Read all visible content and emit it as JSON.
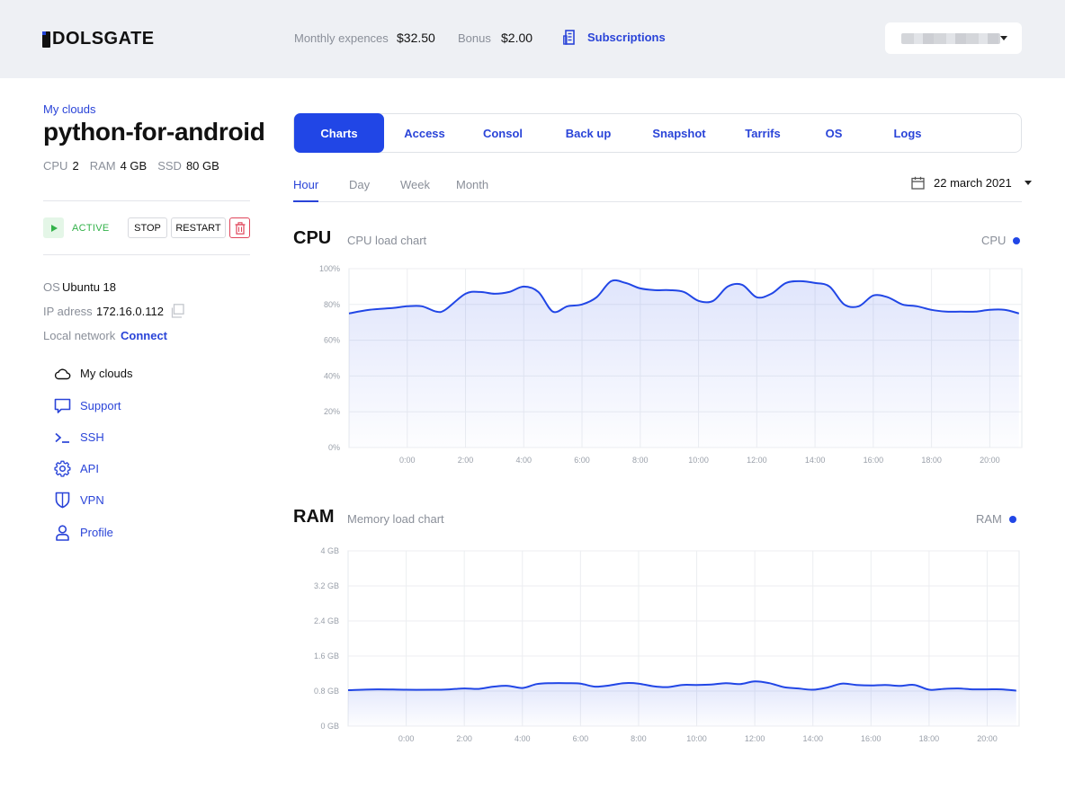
{
  "header": {
    "logo": "DOLSGATE",
    "monthly_label": "Monthly expences",
    "monthly_value": "$32.50",
    "bonus_label": "Bonus",
    "bonus_value": "$2.00",
    "subscriptions_label": "Subscriptions",
    "subscriptions_icon": "building-icon",
    "account_icon": "chevron-down-icon"
  },
  "server": {
    "breadcrumb": "My clouds",
    "name": "python-for-android",
    "specs": [
      {
        "key": "CPU",
        "value": "2"
      },
      {
        "key": "RAM",
        "value": "4 GB"
      },
      {
        "key": "SSD",
        "value": "80 GB"
      }
    ],
    "status": "ACTIVE",
    "stop_label": "STOP",
    "restart_label": "RESTART",
    "os_label": "OS",
    "os_value": "Ubuntu 18",
    "ip_label": "IP adress",
    "ip_value": "172.16.0.112",
    "local_label": "Local network",
    "local_action": "Connect"
  },
  "nav": [
    {
      "label": "My clouds",
      "icon": "cloud-icon"
    },
    {
      "label": "Support",
      "icon": "chat-icon"
    },
    {
      "label": "SSH",
      "icon": "terminal-icon"
    },
    {
      "label": "API",
      "icon": "gear-icon"
    },
    {
      "label": "VPN",
      "icon": "shield-icon"
    },
    {
      "label": "Profile",
      "icon": "user-icon"
    }
  ],
  "tabs": [
    "Charts",
    "Access",
    "Consol",
    "Back up",
    "Snapshot",
    "Tarrifs",
    "OS",
    "Logs"
  ],
  "periods": [
    "Hour",
    "Day",
    "Week",
    "Month"
  ],
  "date": "22 march 2021",
  "accent_color": "#2146e6",
  "chart_data": [
    {
      "type": "area",
      "title": "CPU",
      "subtitle": "CPU load chart",
      "legend": "CPU",
      "legend_position": "top-right",
      "grid": true,
      "ylim": [
        0,
        100
      ],
      "yticks": [
        "0%",
        "20%",
        "40%",
        "60%",
        "80%",
        "100%"
      ],
      "xticks": [
        "0:00",
        "2:00",
        "4:00",
        "6:00",
        "8:00",
        "10:00",
        "12:00",
        "14:00",
        "16:00",
        "18:00",
        "20:00"
      ],
      "x": [
        -2,
        -1.3,
        -0.5,
        0,
        0.5,
        1,
        1.3,
        2,
        2.5,
        3,
        3.5,
        4,
        4.5,
        5,
        5.5,
        6,
        6.5,
        7,
        7.5,
        8,
        8.5,
        9,
        9.5,
        10,
        10.5,
        11,
        11.5,
        12,
        12.5,
        13,
        13.5,
        14,
        14.5,
        15,
        15.5,
        16,
        16.5,
        17,
        17.5,
        18,
        18.5,
        19,
        19.5,
        20,
        20.5,
        21
      ],
      "series": [
        {
          "name": "CPU",
          "values": [
            75,
            77,
            78,
            79,
            79,
            76,
            77,
            86,
            87,
            86,
            87,
            90,
            87,
            76,
            79,
            80,
            84,
            93,
            92,
            89,
            88,
            88,
            87,
            82,
            82,
            90,
            91,
            84,
            86,
            92,
            93,
            92,
            90,
            80,
            79,
            85,
            84,
            80,
            79,
            77,
            76,
            76,
            76,
            77,
            77,
            75
          ]
        }
      ]
    },
    {
      "type": "area",
      "title": "RAM",
      "subtitle": "Memory load chart",
      "legend": "RAM",
      "legend_position": "top-right",
      "grid": true,
      "ylim": [
        0,
        4
      ],
      "yticks": [
        "0 GB",
        "0.8 GB",
        "1.6 GB",
        "2.4 GB",
        "3.2 GB",
        "4 GB"
      ],
      "xticks": [
        "0:00",
        "2:00",
        "4:00",
        "6:00",
        "8:00",
        "10:00",
        "12:00",
        "14:00",
        "16:00",
        "18:00",
        "20:00"
      ],
      "x": [
        -2,
        -1,
        0,
        1,
        1.5,
        2,
        2.5,
        3,
        3.5,
        4,
        4.5,
        5,
        5.5,
        6,
        6.5,
        7,
        7.5,
        8,
        8.5,
        9,
        9.5,
        10,
        10.5,
        11,
        11.5,
        12,
        12.5,
        13,
        13.5,
        14,
        14.5,
        15,
        15.5,
        16,
        16.5,
        17,
        17.5,
        18,
        18.5,
        19,
        19.5,
        20,
        20.5,
        21
      ],
      "series": [
        {
          "name": "RAM",
          "values": [
            0.82,
            0.84,
            0.83,
            0.83,
            0.84,
            0.86,
            0.85,
            0.9,
            0.92,
            0.87,
            0.96,
            0.98,
            0.98,
            0.97,
            0.9,
            0.93,
            0.98,
            0.97,
            0.91,
            0.89,
            0.94,
            0.94,
            0.95,
            0.98,
            0.96,
            1.02,
            0.98,
            0.89,
            0.86,
            0.83,
            0.88,
            0.97,
            0.94,
            0.93,
            0.94,
            0.92,
            0.94,
            0.83,
            0.85,
            0.86,
            0.84,
            0.84,
            0.84,
            0.81
          ]
        }
      ]
    }
  ]
}
